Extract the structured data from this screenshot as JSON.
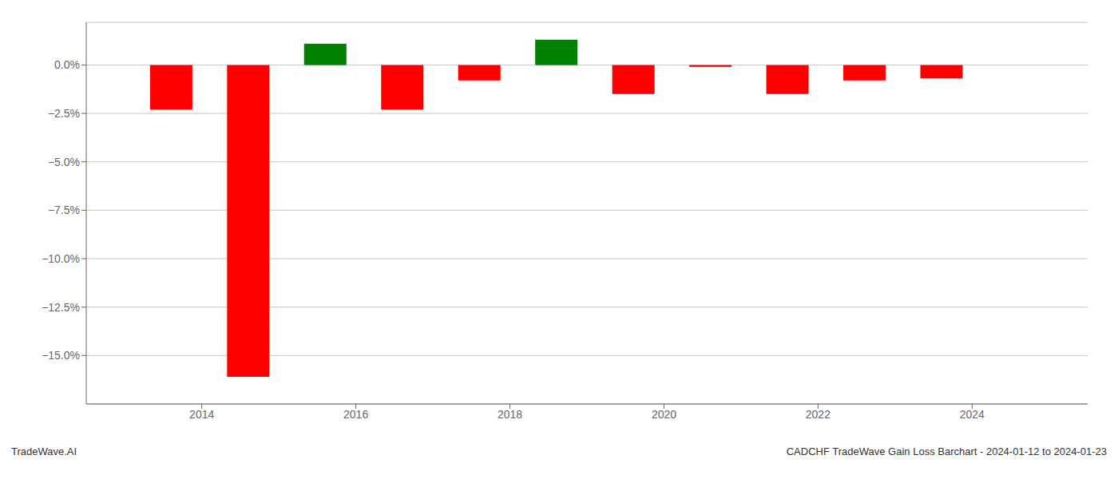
{
  "chart_data": {
    "type": "bar",
    "x": [
      2013.6,
      2014.6,
      2015.6,
      2016.6,
      2017.6,
      2018.6,
      2019.6,
      2020.6,
      2021.6,
      2022.6,
      2023.6
    ],
    "values": [
      -0.023,
      -0.161,
      0.011,
      -0.023,
      -0.008,
      0.013,
      -0.015,
      -0.001,
      -0.015,
      -0.008,
      -0.007
    ],
    "colors": [
      "#ff0000",
      "#ff0000",
      "#008000",
      "#ff0000",
      "#ff0000",
      "#008000",
      "#ff0000",
      "#ff0000",
      "#ff0000",
      "#ff0000",
      "#ff0000"
    ],
    "xlim": [
      2012.5,
      2025.5
    ],
    "xticks": [
      2014,
      2016,
      2018,
      2020,
      2022,
      2024
    ],
    "ylim": [
      -0.175,
      0.022
    ],
    "yticks": [
      {
        "value": 0.0,
        "label": "0.0%"
      },
      {
        "value": -0.025,
        "label": "−2.5%"
      },
      {
        "value": -0.05,
        "label": "−5.0%"
      },
      {
        "value": -0.075,
        "label": "−7.5%"
      },
      {
        "value": -0.1,
        "label": "−10.0%"
      },
      {
        "value": -0.125,
        "label": "−12.5%"
      },
      {
        "value": -0.15,
        "label": "−15.0%"
      }
    ],
    "grid": true,
    "annotations": [
      "TradeWave.AI",
      "CADCHF TradeWave Gain Loss Barchart - 2024-01-12 to 2024-01-23"
    ]
  }
}
